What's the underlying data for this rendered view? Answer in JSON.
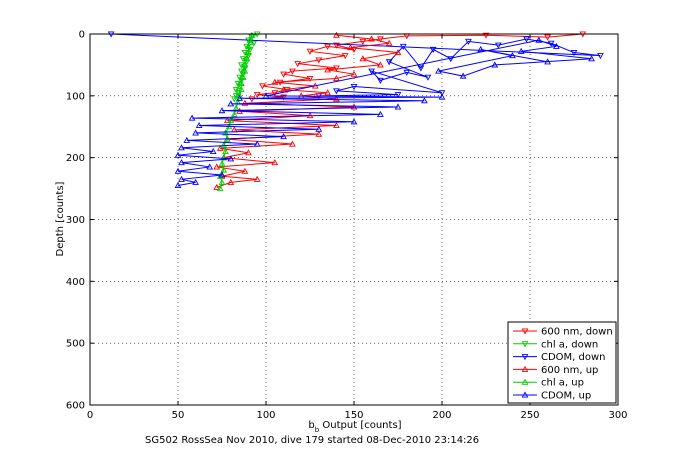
{
  "chart_data": {
    "type": "line",
    "xlabel": "b_b Output [counts]",
    "ylabel": "Depth [counts]",
    "caption": "SG502 RossSea Nov 2010, dive 179 started 08-Dec-2010 23:14:26",
    "xlim": [
      0,
      300
    ],
    "ylim": [
      0,
      600
    ],
    "y_reversed": true,
    "x_ticks": [
      0,
      50,
      100,
      150,
      200,
      250,
      300
    ],
    "y_ticks": [
      0,
      100,
      200,
      300,
      400,
      500,
      600
    ],
    "grid": true,
    "legend_position": "bottom-right",
    "series": [
      {
        "name": "600 nm, down",
        "color": "#ff0000",
        "marker": "triangle-down",
        "points": [
          [
            280,
            0
          ],
          [
            260,
            5
          ],
          [
            225,
            2
          ],
          [
            180,
            3
          ],
          [
            165,
            8
          ],
          [
            155,
            12
          ],
          [
            140,
            18
          ],
          [
            150,
            25
          ],
          [
            135,
            20
          ],
          [
            125,
            28
          ],
          [
            145,
            35
          ],
          [
            130,
            42
          ],
          [
            118,
            48
          ],
          [
            140,
            55
          ],
          [
            115,
            60
          ],
          [
            110,
            65
          ],
          [
            125,
            72
          ],
          [
            108,
            78
          ],
          [
            98,
            84
          ],
          [
            112,
            90
          ],
          [
            105,
            95
          ],
          [
            95,
            98
          ],
          [
            110,
            102
          ],
          [
            92,
            105
          ]
        ]
      },
      {
        "name": "chl a, down",
        "color": "#00cc00",
        "marker": "triangle-down",
        "points": [
          [
            95,
            0
          ],
          [
            92,
            5
          ],
          [
            90,
            10
          ],
          [
            93,
            15
          ],
          [
            89,
            20
          ],
          [
            91,
            25
          ],
          [
            88,
            30
          ],
          [
            90,
            35
          ],
          [
            87,
            40
          ],
          [
            89,
            45
          ],
          [
            86,
            50
          ],
          [
            88,
            55
          ],
          [
            86,
            60
          ],
          [
            87,
            65
          ],
          [
            85,
            70
          ],
          [
            86,
            75
          ],
          [
            84,
            80
          ],
          [
            85,
            85
          ],
          [
            83,
            90
          ],
          [
            84,
            95
          ],
          [
            83,
            100
          ],
          [
            82,
            105
          ]
        ]
      },
      {
        "name": "CDOM, down",
        "color": "#0000ff",
        "marker": "triangle-down",
        "points": [
          [
            12,
            0
          ],
          [
            290,
            35
          ],
          [
            275,
            30
          ],
          [
            262,
            15
          ],
          [
            248,
            8
          ],
          [
            232,
            18
          ],
          [
            215,
            12
          ],
          [
            205,
            40
          ],
          [
            195,
            25
          ],
          [
            188,
            55
          ],
          [
            178,
            20
          ],
          [
            170,
            45
          ],
          [
            192,
            70
          ],
          [
            180,
            62
          ],
          [
            165,
            75
          ],
          [
            160,
            60
          ],
          [
            200,
            95
          ],
          [
            150,
            85
          ],
          [
            140,
            92
          ],
          [
            175,
            98
          ],
          [
            130,
            100
          ]
        ]
      },
      {
        "name": "600 nm, up",
        "color": "#ff0000",
        "marker": "triangle-up",
        "points": [
          [
            72,
            248
          ],
          [
            80,
            240
          ],
          [
            95,
            235
          ],
          [
            75,
            230
          ],
          [
            88,
            222
          ],
          [
            72,
            215
          ],
          [
            105,
            208
          ],
          [
            76,
            200
          ],
          [
            90,
            192
          ],
          [
            74,
            185
          ],
          [
            115,
            178
          ],
          [
            78,
            170
          ],
          [
            130,
            162
          ],
          [
            82,
            155
          ],
          [
            140,
            148
          ],
          [
            78,
            140
          ],
          [
            125,
            132
          ],
          [
            85,
            125
          ],
          [
            150,
            118
          ],
          [
            88,
            112
          ],
          [
            140,
            105
          ],
          [
            120,
            100
          ],
          [
            135,
            95
          ],
          [
            110,
            90
          ],
          [
            128,
            84
          ],
          [
            105,
            78
          ],
          [
            140,
            72
          ],
          [
            150,
            65
          ],
          [
            135,
            58
          ],
          [
            165,
            50
          ],
          [
            155,
            40
          ],
          [
            175,
            30
          ],
          [
            148,
            22
          ],
          [
            170,
            15
          ],
          [
            160,
            8
          ],
          [
            140,
            2
          ]
        ]
      },
      {
        "name": "chl a, up",
        "color": "#00cc00",
        "marker": "triangle-up",
        "points": [
          [
            74,
            250
          ],
          [
            75,
            240
          ],
          [
            74,
            230
          ],
          [
            76,
            220
          ],
          [
            75,
            210
          ],
          [
            76,
            200
          ],
          [
            77,
            190
          ],
          [
            76,
            180
          ],
          [
            78,
            170
          ],
          [
            77,
            160
          ],
          [
            79,
            150
          ],
          [
            80,
            140
          ],
          [
            82,
            130
          ],
          [
            83,
            120
          ],
          [
            84,
            110
          ],
          [
            85,
            100
          ],
          [
            86,
            90
          ],
          [
            86,
            80
          ],
          [
            87,
            70
          ],
          [
            88,
            60
          ],
          [
            88,
            50
          ],
          [
            89,
            40
          ],
          [
            90,
            30
          ],
          [
            90,
            20
          ],
          [
            91,
            10
          ],
          [
            92,
            2
          ]
        ]
      },
      {
        "name": "CDOM, up",
        "color": "#0000ff",
        "marker": "triangle-up",
        "points": [
          [
            50,
            245
          ],
          [
            60,
            240
          ],
          [
            52,
            235
          ],
          [
            75,
            228
          ],
          [
            50,
            222
          ],
          [
            68,
            215
          ],
          [
            52,
            208
          ],
          [
            80,
            202
          ],
          [
            50,
            196
          ],
          [
            70,
            190
          ],
          [
            52,
            184
          ],
          [
            95,
            178
          ],
          [
            55,
            172
          ],
          [
            110,
            166
          ],
          [
            60,
            160
          ],
          [
            130,
            154
          ],
          [
            62,
            148
          ],
          [
            150,
            142
          ],
          [
            58,
            136
          ],
          [
            165,
            130
          ],
          [
            75,
            124
          ],
          [
            175,
            118
          ],
          [
            80,
            113
          ],
          [
            190,
            108
          ],
          [
            85,
            104
          ],
          [
            200,
            102
          ],
          [
            100,
            100
          ],
          [
            255,
            10
          ],
          [
            265,
            20
          ],
          [
            245,
            28
          ],
          [
            285,
            40
          ],
          [
            230,
            50
          ],
          [
            212,
            68
          ],
          [
            198,
            60
          ],
          [
            240,
            35
          ],
          [
            222,
            25
          ],
          [
            260,
            45
          ]
        ]
      }
    ]
  }
}
